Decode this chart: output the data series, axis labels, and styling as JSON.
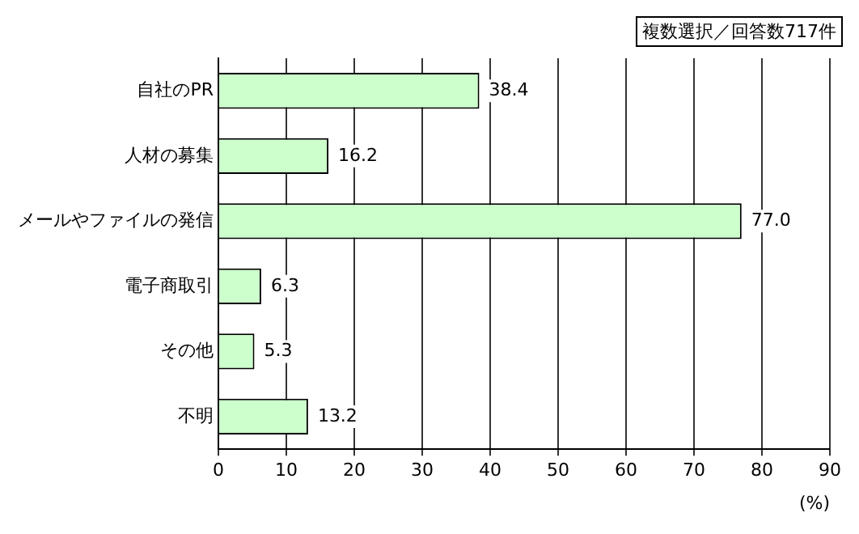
{
  "chart_data": {
    "type": "bar",
    "orientation": "horizontal",
    "categories": [
      "自社のPR",
      "人材の募集",
      "メールやファイルの発信",
      "電子商取引",
      "その他",
      "不明"
    ],
    "values": [
      38.4,
      16.2,
      77.0,
      6.3,
      5.3,
      13.2
    ],
    "value_labels": [
      "38.4",
      "16.2",
      "77.0",
      "6.3",
      "5.3",
      "13.2"
    ],
    "color": "#ccffcc",
    "xlim": [
      0,
      90
    ],
    "xticks": [
      0,
      10,
      20,
      30,
      40,
      50,
      60,
      70,
      80,
      90
    ],
    "xlabel": "(%)",
    "grid": "x",
    "legend": false,
    "annotations": [
      "複数選択／回答数717件"
    ]
  }
}
